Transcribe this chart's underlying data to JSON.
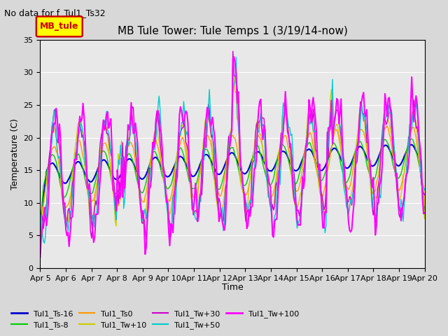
{
  "title": "MB Tule Tower: Tule Temps 1 (3/19/14-now)",
  "subtitle": "No data for f_Tul1_Ts32",
  "ylabel": "Temperature (C)",
  "xlabel": "Time",
  "ylim": [
    0,
    35
  ],
  "yticks": [
    0,
    5,
    10,
    15,
    20,
    25,
    30,
    35
  ],
  "xtick_labels": [
    "Apr 5",
    "Apr 6",
    "Apr 7",
    "Apr 8",
    "Apr 9",
    "Apr 10",
    "Apr 11",
    "Apr 12",
    "Apr 13",
    "Apr 14",
    "Apr 15",
    "Apr 16",
    "Apr 17",
    "Apr 18",
    "Apr 19",
    "Apr 20"
  ],
  "legend_box_label": "MB_tule",
  "legend_box_color": "#ffff00",
  "legend_box_border": "#cc0000",
  "series": {
    "Tul1_Ts-16": {
      "color": "#0000cc",
      "linewidth": 1.5
    },
    "Tul1_Ts-8": {
      "color": "#00cc00",
      "linewidth": 1.0
    },
    "Tul1_Ts0": {
      "color": "#ff9900",
      "linewidth": 1.0
    },
    "Tul1_Tw+10": {
      "color": "#cccc00",
      "linewidth": 1.0
    },
    "Tul1_Tw+30": {
      "color": "#cc00cc",
      "linewidth": 1.0
    },
    "Tul1_Tw+50": {
      "color": "#00cccc",
      "linewidth": 1.0
    },
    "Tul1_Tw+100": {
      "color": "#ff00ff",
      "linewidth": 1.5
    }
  }
}
